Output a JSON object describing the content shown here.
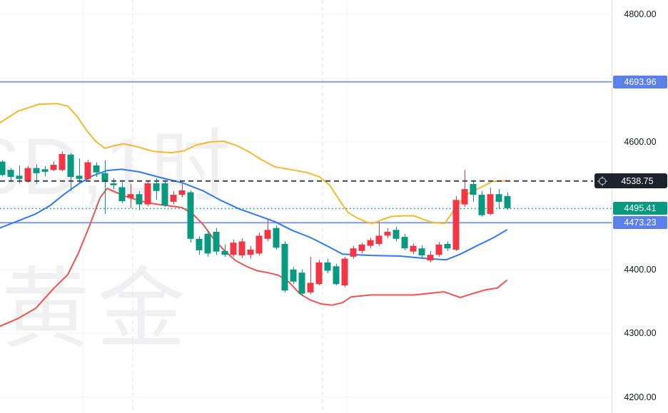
{
  "watermark": {
    "line1": "SD,1时",
    "line2": "黄金"
  },
  "axis": {
    "tick_labels": [
      {
        "price": 4800,
        "text": "4800.00"
      },
      {
        "price": 4600,
        "text": "4600.00"
      },
      {
        "price": 4400,
        "text": "4400.00"
      },
      {
        "price": 4300,
        "text": "4300.00"
      },
      {
        "price": 4200,
        "text": "4200.00"
      }
    ],
    "level_badges": [
      {
        "price": 4693.96,
        "text": "4693.96",
        "bg": "#5b80e9"
      },
      {
        "price": 4495.41,
        "text": "4495.41",
        "bg": "#089981"
      },
      {
        "price": 4473.23,
        "text": "4473.23",
        "bg": "#5b80e9"
      }
    ],
    "crosshair_badge": {
      "price": 4538.75,
      "text": "4538.75",
      "bg": "#1e222d",
      "icon": "crosshair-target"
    }
  },
  "chart_data": {
    "type": "candlestick",
    "title": "",
    "symbol_watermark": "SD,1时",
    "instrument_watermark": "黄金",
    "convention": "red = up candle, green = down candle (Chinese style)",
    "up_color": "#f23645",
    "down_color": "#089981",
    "price_axis": {
      "visible_min": 4178,
      "visible_max": 4822,
      "tick_interval": 100,
      "grid": true
    },
    "grid": {
      "horizontal_prices": [
        4800,
        4700,
        4600,
        4500,
        4400,
        4300,
        4200
      ],
      "vertical_solid_x": [
        116,
        486
      ],
      "vertical_dashed_x": [
        186,
        452
      ]
    },
    "horizontal_levels": [
      {
        "price": 4693.96,
        "style": "solid",
        "color": "#7e9cf0",
        "label_bg": "#5b80e9"
      },
      {
        "price": 4538.75,
        "style": "dashed",
        "color": "#40434e",
        "label_bg": "#1e222d",
        "icon": "crosshair-target"
      },
      {
        "price": 4495.41,
        "style": "dotted",
        "color": "#089981",
        "label_bg": "#089981"
      },
      {
        "price": 4473.23,
        "style": "solid",
        "color": "#7e9cf0",
        "label_bg": "#5b80e9"
      }
    ],
    "candles_format": "[open, high, low, close]",
    "candles": [
      [
        4569,
        4571,
        4546,
        4548
      ],
      [
        4556,
        4559,
        4537,
        4545
      ],
      [
        4547,
        4563,
        4535,
        4542
      ],
      [
        4538,
        4562,
        4536,
        4559
      ],
      [
        4559,
        4565,
        4534,
        4551
      ],
      [
        4557,
        4562,
        4546,
        4553
      ],
      [
        4556,
        4569,
        4554,
        4564
      ],
      [
        4556,
        4585,
        4554,
        4581
      ],
      [
        4580,
        4582,
        4523,
        4545
      ],
      [
        4547,
        4574,
        4536,
        4542
      ],
      [
        4542,
        4572,
        4540,
        4568
      ],
      [
        4563,
        4568,
        4545,
        4552
      ],
      [
        4551,
        4571,
        4487,
        4537
      ],
      [
        4535,
        4543,
        4526,
        4532
      ],
      [
        4529,
        4537,
        4504,
        4507
      ],
      [
        4512,
        4534,
        4496,
        4518
      ],
      [
        4518,
        4523,
        4493,
        4502
      ],
      [
        4502,
        4540,
        4499,
        4535
      ],
      [
        4535,
        4543,
        4509,
        4523
      ],
      [
        4535,
        4540,
        4498,
        4500
      ],
      [
        4506,
        4523,
        4502,
        4517
      ],
      [
        4517,
        4535,
        4513,
        4524
      ],
      [
        4521,
        4524,
        4442,
        4448
      ],
      [
        4448,
        4452,
        4423,
        4430
      ],
      [
        4456,
        4462,
        4420,
        4425
      ],
      [
        4459,
        4465,
        4423,
        4428
      ],
      [
        4429,
        4439,
        4420,
        4423
      ],
      [
        4423,
        4447,
        4420,
        4442
      ],
      [
        4422,
        4449,
        4418,
        4444
      ],
      [
        4423,
        4437,
        4417,
        4431
      ],
      [
        4425,
        4458,
        4422,
        4453
      ],
      [
        4448,
        4478,
        4444,
        4462
      ],
      [
        4465,
        4469,
        4431,
        4434
      ],
      [
        4440,
        4444,
        4364,
        4367
      ],
      [
        4400,
        4404,
        4377,
        4381
      ],
      [
        4395,
        4400,
        4358,
        4362
      ],
      [
        4364,
        4420,
        4361,
        4379
      ],
      [
        4377,
        4415,
        4375,
        4411
      ],
      [
        4411,
        4417,
        4394,
        4398
      ],
      [
        4405,
        4409,
        4375,
        4377
      ],
      [
        4375,
        4420,
        4372,
        4417
      ],
      [
        4420,
        4437,
        4417,
        4433
      ],
      [
        4429,
        4442,
        4425,
        4439
      ],
      [
        4437,
        4450,
        4433,
        4446
      ],
      [
        4440,
        4474,
        4437,
        4453
      ],
      [
        4453,
        4465,
        4449,
        4459
      ],
      [
        4462,
        4467,
        4444,
        4448
      ],
      [
        4451,
        4456,
        4430,
        4433
      ],
      [
        4428,
        4441,
        4424,
        4437
      ],
      [
        4433,
        4438,
        4419,
        4422
      ],
      [
        4414,
        4429,
        4411,
        4423
      ],
      [
        4423,
        4443,
        4420,
        4439
      ],
      [
        4440,
        4444,
        4429,
        4433
      ],
      [
        4431,
        4515,
        4429,
        4509
      ],
      [
        4502,
        4556,
        4498,
        4526
      ],
      [
        4534,
        4540,
        4506,
        4517
      ],
      [
        4517,
        4523,
        4483,
        4485
      ],
      [
        4487,
        4528,
        4485,
        4518
      ],
      [
        4518,
        4526,
        4495,
        4506
      ],
      [
        4515,
        4521,
        4494,
        4496
      ]
    ],
    "overlays": [
      {
        "name": "band-upper",
        "color": "#f3ba2f",
        "points": [
          [
            0,
            4630
          ],
          [
            25,
            4648
          ],
          [
            55,
            4659
          ],
          [
            80,
            4660
          ],
          [
            95,
            4656
          ],
          [
            108,
            4640
          ],
          [
            122,
            4617
          ],
          [
            135,
            4600
          ],
          [
            147,
            4590
          ],
          [
            160,
            4594
          ],
          [
            173,
            4597
          ],
          [
            190,
            4593
          ],
          [
            215,
            4585
          ],
          [
            240,
            4583
          ],
          [
            258,
            4586
          ],
          [
            275,
            4595
          ],
          [
            295,
            4600
          ],
          [
            313,
            4601
          ],
          [
            330,
            4595
          ],
          [
            348,
            4585
          ],
          [
            365,
            4573
          ],
          [
            385,
            4561
          ],
          [
            410,
            4556
          ],
          [
            430,
            4552
          ],
          [
            448,
            4545
          ],
          [
            462,
            4532
          ],
          [
            475,
            4510
          ],
          [
            487,
            4490
          ],
          [
            500,
            4481
          ],
          [
            512,
            4475
          ],
          [
            522,
            4472
          ],
          [
            535,
            4478
          ],
          [
            548,
            4483
          ],
          [
            565,
            4484
          ],
          [
            580,
            4484
          ],
          [
            592,
            4479
          ],
          [
            605,
            4474
          ],
          [
            623,
            4472
          ],
          [
            638,
            4496
          ],
          [
            653,
            4517
          ],
          [
            665,
            4524
          ],
          [
            678,
            4531
          ],
          [
            690,
            4538
          ],
          [
            710,
            4539
          ]
        ]
      },
      {
        "name": "band-middle",
        "color": "#3179f2",
        "points": [
          [
            0,
            4465
          ],
          [
            25,
            4476
          ],
          [
            50,
            4487
          ],
          [
            70,
            4500
          ],
          [
            90,
            4518
          ],
          [
            110,
            4534
          ],
          [
            130,
            4547
          ],
          [
            150,
            4555
          ],
          [
            170,
            4557
          ],
          [
            195,
            4553
          ],
          [
            225,
            4544
          ],
          [
            255,
            4536
          ],
          [
            285,
            4523
          ],
          [
            310,
            4508
          ],
          [
            335,
            4495
          ],
          [
            360,
            4485
          ],
          [
            385,
            4475
          ],
          [
            410,
            4461
          ],
          [
            435,
            4450
          ],
          [
            460,
            4436
          ],
          [
            480,
            4424
          ],
          [
            520,
            4422
          ],
          [
            560,
            4421
          ],
          [
            600,
            4417
          ],
          [
            625,
            4415
          ],
          [
            645,
            4424
          ],
          [
            668,
            4437
          ],
          [
            692,
            4450
          ],
          [
            710,
            4462
          ]
        ]
      },
      {
        "name": "band-lower",
        "color": "#ef5350",
        "points": [
          [
            0,
            4311
          ],
          [
            25,
            4323
          ],
          [
            50,
            4339
          ],
          [
            75,
            4370
          ],
          [
            95,
            4392
          ],
          [
            110,
            4426
          ],
          [
            125,
            4467
          ],
          [
            140,
            4512
          ],
          [
            150,
            4527
          ],
          [
            160,
            4522
          ],
          [
            175,
            4515
          ],
          [
            195,
            4508
          ],
          [
            215,
            4503
          ],
          [
            235,
            4500
          ],
          [
            255,
            4497
          ],
          [
            270,
            4487
          ],
          [
            285,
            4470
          ],
          [
            300,
            4447
          ],
          [
            315,
            4429
          ],
          [
            330,
            4414
          ],
          [
            345,
            4405
          ],
          [
            360,
            4398
          ],
          [
            375,
            4395
          ],
          [
            390,
            4391
          ],
          [
            405,
            4380
          ],
          [
            420,
            4362
          ],
          [
            435,
            4352
          ],
          [
            450,
            4346
          ],
          [
            465,
            4344
          ],
          [
            480,
            4348
          ],
          [
            492,
            4357
          ],
          [
            520,
            4360
          ],
          [
            555,
            4360
          ],
          [
            580,
            4360
          ],
          [
            605,
            4363
          ],
          [
            622,
            4365
          ],
          [
            645,
            4356
          ],
          [
            662,
            4362
          ],
          [
            680,
            4368
          ],
          [
            697,
            4371
          ],
          [
            710,
            4383
          ]
        ]
      }
    ]
  }
}
